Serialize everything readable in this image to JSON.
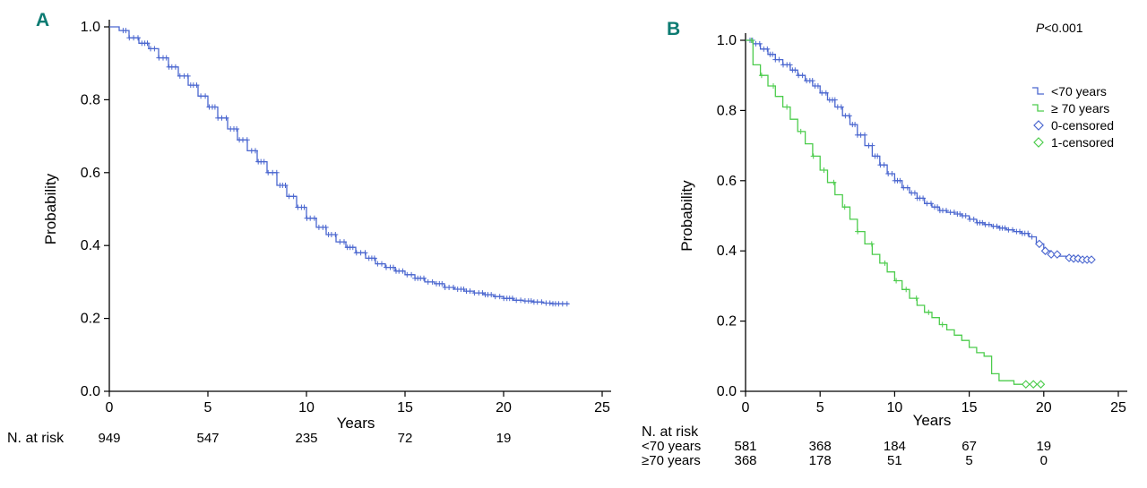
{
  "page": {
    "background": "#ffffff"
  },
  "panels": [
    {
      "label": "A",
      "label_color": "#0c7b72"
    },
    {
      "label": "B",
      "label_color": "#0c7b72"
    }
  ],
  "chart_data": [
    {
      "panel": "A",
      "type": "line",
      "subtype": "kaplan-meier",
      "title": "",
      "xlabel": "Years",
      "ylabel": "Probability",
      "xlim": [
        0,
        25
      ],
      "ylim": [
        0.0,
        1.0
      ],
      "xticks": [
        0,
        5,
        10,
        15,
        20,
        25
      ],
      "yticks": [
        0.0,
        0.2,
        0.4,
        0.6,
        0.8,
        1.0
      ],
      "grid": false,
      "series": [
        {
          "name": "",
          "color": "#4a66cf",
          "censor_marker": "plus",
          "censor_ticks": {
            "from": 0.7,
            "to": 23.2,
            "step": 0.18,
            "jitter": 0.05
          },
          "x": [
            0,
            0.5,
            1,
            1.5,
            2,
            2.5,
            3,
            3.5,
            4,
            4.5,
            5,
            5.5,
            6,
            6.5,
            7,
            7.5,
            8,
            8.5,
            9,
            9.5,
            10,
            10.5,
            11,
            11.5,
            12,
            12.5,
            13,
            13.5,
            14,
            14.5,
            15,
            15.5,
            16,
            16.5,
            17,
            17.5,
            18,
            18.5,
            19,
            19.5,
            20,
            20.5,
            21,
            21.5,
            22,
            22.5,
            23,
            23.3
          ],
          "y": [
            1.0,
            0.99,
            0.97,
            0.955,
            0.94,
            0.915,
            0.89,
            0.865,
            0.84,
            0.81,
            0.78,
            0.75,
            0.72,
            0.69,
            0.66,
            0.63,
            0.6,
            0.565,
            0.535,
            0.505,
            0.475,
            0.45,
            0.43,
            0.41,
            0.395,
            0.38,
            0.365,
            0.35,
            0.34,
            0.33,
            0.32,
            0.31,
            0.3,
            0.295,
            0.285,
            0.28,
            0.275,
            0.27,
            0.265,
            0.26,
            0.255,
            0.25,
            0.248,
            0.245,
            0.242,
            0.24,
            0.24,
            0.24
          ]
        }
      ],
      "at_risk": {
        "label": "N. at risk",
        "times": [
          0,
          5,
          10,
          15,
          20
        ],
        "rows": [
          {
            "label": "",
            "counts": [
              "949",
              "547",
              "235",
              "72",
              "19"
            ]
          }
        ]
      }
    },
    {
      "panel": "B",
      "type": "line",
      "subtype": "kaplan-meier",
      "title": "",
      "xlabel": "Years",
      "ylabel": "Probability",
      "xlim": [
        0,
        25
      ],
      "ylim": [
        0.0,
        1.0
      ],
      "xticks": [
        0,
        5,
        10,
        15,
        20,
        25
      ],
      "yticks": [
        0.0,
        0.2,
        0.4,
        0.6,
        0.8,
        1.0
      ],
      "grid": false,
      "annotation": {
        "text": "P<0.001",
        "italic_prefix": "P"
      },
      "legend": {
        "position": "right-top",
        "entries": [
          {
            "label": "<70 years",
            "color": "#4a66cf",
            "marker": "step"
          },
          {
            "label": "≥ 70 years",
            "color": "#4ccc4c",
            "marker": "step"
          },
          {
            "label": "0-censored",
            "color": "#4a66cf",
            "marker": "diamond"
          },
          {
            "label": "1-censored",
            "color": "#4ccc4c",
            "marker": "diamond"
          }
        ]
      },
      "series": [
        {
          "name": "<70 years",
          "color": "#4a66cf",
          "censor_marker": "plus",
          "censor_ticks": {
            "from": 0.3,
            "to": 19.4,
            "step": 0.22,
            "jitter": 0.06
          },
          "diamonds": [
            19.7,
            20.1,
            20.5,
            20.9,
            21.7,
            22.0,
            22.3,
            22.6,
            22.9,
            23.2
          ],
          "x": [
            0,
            0.5,
            1,
            1.5,
            2,
            2.5,
            3,
            3.5,
            4,
            4.5,
            5,
            5.5,
            6,
            6.5,
            7,
            7.5,
            8,
            8.5,
            9,
            9.5,
            10,
            10.5,
            11,
            11.5,
            12,
            12.5,
            13,
            13.5,
            14,
            14.5,
            15,
            15.5,
            16,
            16.5,
            17,
            17.5,
            18,
            18.5,
            19,
            19.5,
            20,
            20.5,
            21,
            21.5,
            22,
            22.5,
            23,
            23.4
          ],
          "y": [
            1.0,
            0.99,
            0.975,
            0.96,
            0.945,
            0.93,
            0.915,
            0.9,
            0.885,
            0.87,
            0.85,
            0.83,
            0.81,
            0.785,
            0.76,
            0.73,
            0.7,
            0.67,
            0.645,
            0.62,
            0.6,
            0.58,
            0.565,
            0.55,
            0.535,
            0.525,
            0.515,
            0.51,
            0.505,
            0.5,
            0.49,
            0.48,
            0.475,
            0.47,
            0.465,
            0.46,
            0.455,
            0.45,
            0.44,
            0.42,
            0.4,
            0.39,
            0.385,
            0.38,
            0.378,
            0.375,
            0.375,
            0.375
          ]
        },
        {
          "name": "≥ 70 years",
          "color": "#4ccc4c",
          "censor_marker": "plus",
          "censor_ticks": {
            "from": 0.4,
            "to": 13.5,
            "step": 0.8,
            "jitter": 0.15
          },
          "diamonds": [
            18.8,
            19.3,
            19.8
          ],
          "x": [
            0,
            0.5,
            1,
            1.5,
            2,
            2.5,
            3,
            3.5,
            4,
            4.5,
            5,
            5.5,
            6,
            6.5,
            7,
            7.5,
            8,
            8.5,
            9,
            9.5,
            10,
            10.5,
            11,
            11.5,
            12,
            12.5,
            13,
            13.5,
            14,
            14.5,
            15,
            15.5,
            16,
            16.5,
            17,
            17.5,
            18,
            18.5,
            19,
            19.5,
            20
          ],
          "y": [
            1.0,
            0.93,
            0.9,
            0.87,
            0.84,
            0.81,
            0.775,
            0.74,
            0.705,
            0.67,
            0.63,
            0.595,
            0.56,
            0.525,
            0.49,
            0.455,
            0.42,
            0.39,
            0.365,
            0.34,
            0.315,
            0.29,
            0.265,
            0.245,
            0.225,
            0.21,
            0.19,
            0.175,
            0.16,
            0.145,
            0.125,
            0.11,
            0.1,
            0.05,
            0.03,
            0.03,
            0.02,
            0.02,
            0.02,
            0.02,
            0.02
          ]
        }
      ],
      "at_risk": {
        "label": "N. at risk",
        "times": [
          0,
          5,
          10,
          15,
          20
        ],
        "rows": [
          {
            "label": "<70 years",
            "counts": [
              "581",
              "368",
              "184",
              "67",
              "19"
            ]
          },
          {
            "label": "≥70 years",
            "counts": [
              "368",
              "178",
              "51",
              "5",
              "0"
            ]
          }
        ]
      }
    }
  ]
}
